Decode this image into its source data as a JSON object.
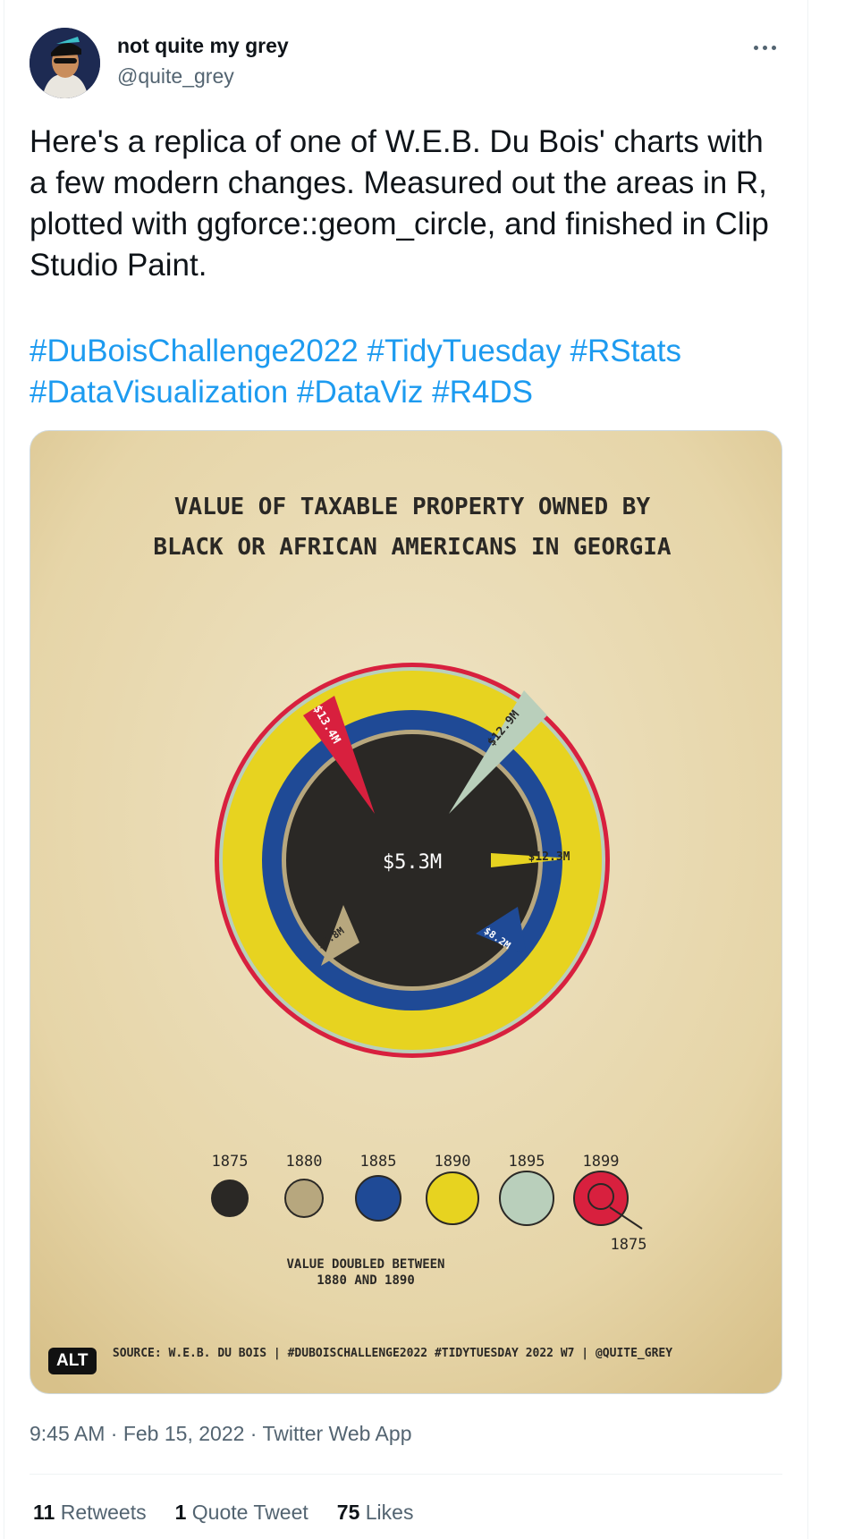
{
  "author": {
    "name": "not quite my grey",
    "handle": "@quite_grey"
  },
  "tweet": {
    "text": "Here's a replica of one of W.E.B. Du Bois' charts with a few modern changes. Measured out the areas in R, plotted with ggforce::geom_circle, and finished in Clip Studio Paint.",
    "hashtags": [
      "#DuBoisChallenge2022",
      "#TidyTuesday",
      "#RStats",
      "#DataVisualization",
      "#DataViz",
      "#R4DS"
    ]
  },
  "image": {
    "alt_badge": "ALT",
    "title_line1": "VALUE OF TAXABLE PROPERTY OWNED BY",
    "title_line2": "BLACK OR AFRICAN AMERICANS IN GEORGIA",
    "center_label": "$5.3M",
    "source": "SOURCE: W.E.B. DU BOIS | #DUBOISCHALLENGE2022 #TIDYTUESDAY 2022 W7 | @QUITE_GREY",
    "note_line1": "VALUE DOUBLED BETWEEN",
    "note_line2": "1880 AND 1890",
    "inner_year_label": "1875"
  },
  "chart_data": {
    "type": "area",
    "title": "VALUE OF TAXABLE PROPERTY OWNED BY BLACK OR AFRICAN AMERICANS IN GEORGIA",
    "series": [
      {
        "year": "1875",
        "label": "$5.3M",
        "color": "#2a2825"
      },
      {
        "year": "1880",
        "label": "$5.8M",
        "color": "#b7a77e"
      },
      {
        "year": "1885",
        "label": "$8.2M",
        "color": "#1f4a96"
      },
      {
        "year": "1890",
        "label": "$12.3M",
        "color": "#e7d320"
      },
      {
        "year": "1895",
        "label": "$12.9M",
        "color": "#b9cfbb"
      },
      {
        "year": "1899",
        "label": "$13.4M",
        "color": "#d8203e"
      }
    ]
  },
  "meta": {
    "time": "9:45 AM",
    "date": "Feb 15, 2022",
    "client": "Twitter Web App"
  },
  "stats": [
    {
      "count": "11",
      "label": "Retweets"
    },
    {
      "count": "1",
      "label": "Quote Tweet"
    },
    {
      "count": "75",
      "label": "Likes"
    }
  ]
}
